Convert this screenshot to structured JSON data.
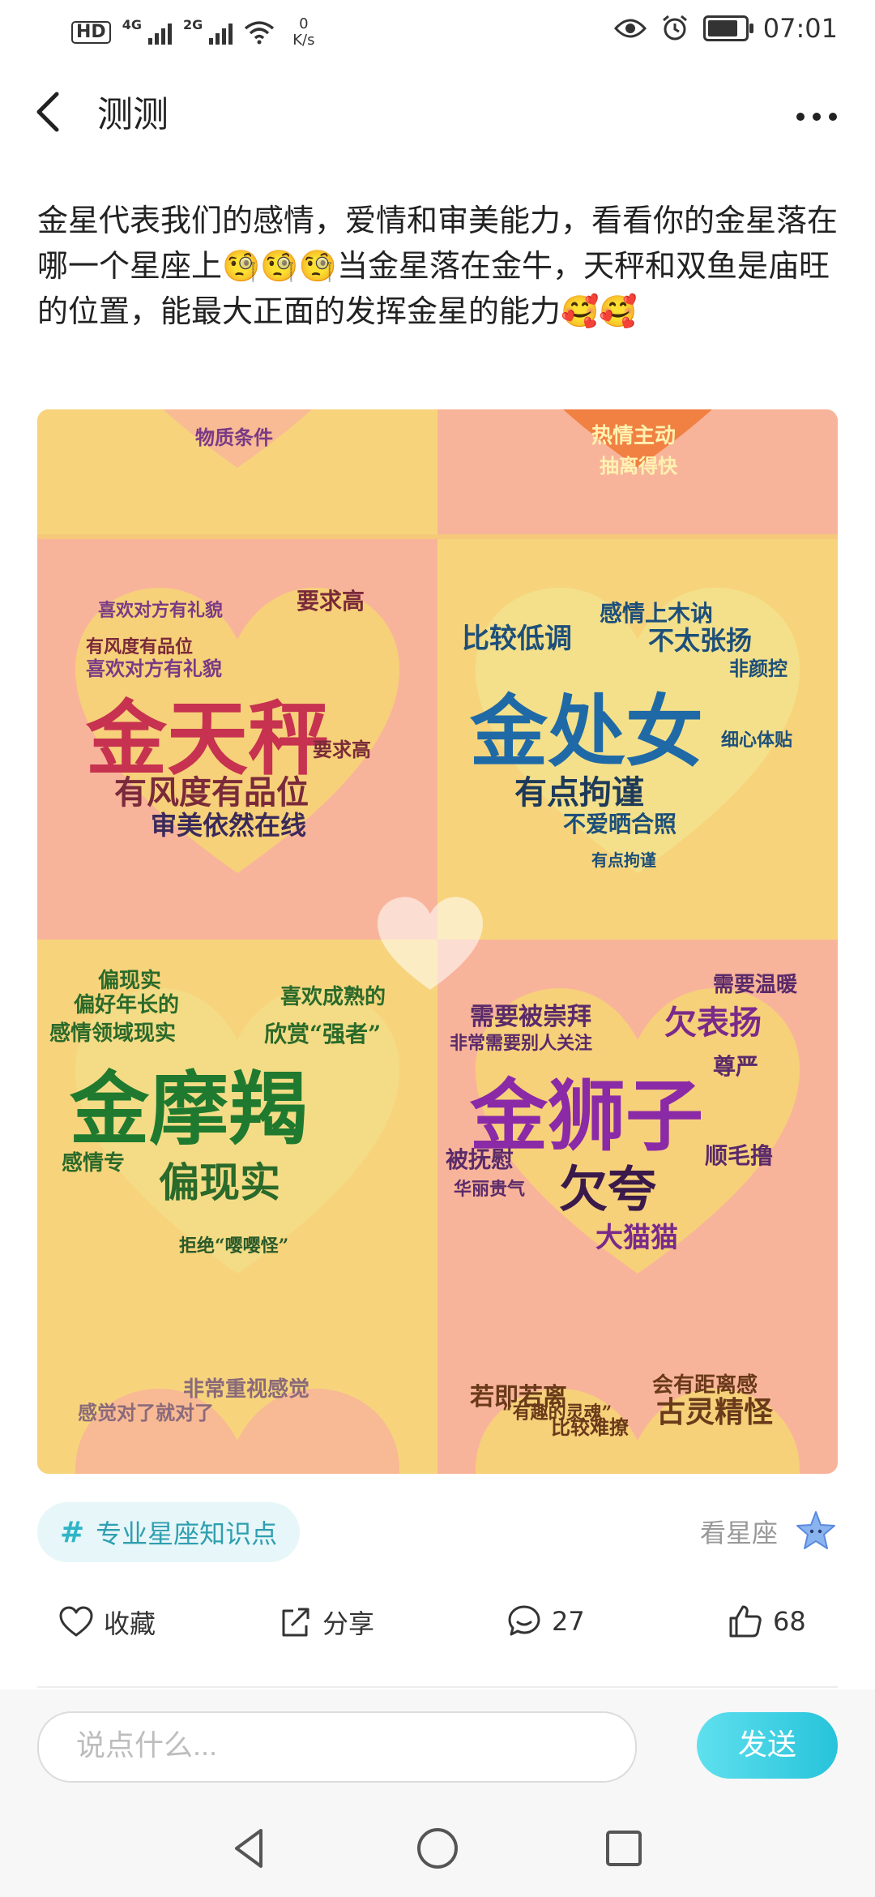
{
  "status_bar": {
    "hd": "HD",
    "sim1": "4G",
    "sim2": "2G",
    "speed_value": "0",
    "speed_unit": "K/s",
    "time": "07:01"
  },
  "header": {
    "title": "测测",
    "back_icon": "chevron-left-icon",
    "more_icon": "more-horizontal-icon"
  },
  "post": {
    "text": "金星代表我们的感情，爱情和审美能力，看看你的金星落在哪一个星座上🧐🧐🧐当金星落在金牛，天秤和双鱼是庙旺的位置，能最大正面的发挥金星的能力🥰🥰",
    "image_tiles": [
      {
        "big": [
          "金天秤"
        ],
        "phrases": [
          "有风度有品位",
          "审美依然在线",
          "喜欢对方有礼貌",
          "要求高",
          "要求高",
          "有风度有品位",
          "喜欢对方有礼貌"
        ]
      },
      {
        "big": [
          "金处女"
        ],
        "phrases": [
          "有点拘谨",
          "不爱晒合照",
          "比较低调",
          "不太张扬",
          "感情上木讷",
          "非颜控",
          "细心体贴",
          "有点拘谨"
        ]
      },
      {
        "big": [
          "金摩羯"
        ],
        "phrases": [
          "偏现实",
          "感情领域现实",
          "喜欢成熟的",
          "欣赏“强者”",
          "偏好年长的",
          "偏现实",
          "感情专",
          "拒绝“嘤嘤怪”"
        ]
      },
      {
        "big": [
          "金狮子"
        ],
        "phrases": [
          "欠夸",
          "大猫猫",
          "需要被崇拜",
          "欠表扬",
          "需要温暖",
          "被抚慰",
          "顺毛撸",
          "尊严",
          "华丽贵气",
          "非常需要别人关注"
        ]
      }
    ],
    "top_partial": [
      "物质条件",
      "热情主动",
      "抽离得快"
    ],
    "bottom_partial": [
      "非常重视感觉",
      "感觉对了就对了",
      "若即若离",
      "古灵精怪",
      "比较难撩",
      "会有距离感",
      "“有趣的灵魂”"
    ]
  },
  "tag": {
    "hash": "#",
    "label": "专业星座知识点"
  },
  "source": {
    "label": "看星座",
    "icon": "star-mascot-icon"
  },
  "actions": {
    "favorite": {
      "label": "收藏",
      "icon": "heart-icon"
    },
    "share": {
      "label": "分享",
      "icon": "share-icon"
    },
    "comment": {
      "count": "27",
      "icon": "comment-icon"
    },
    "like": {
      "count": "68",
      "icon": "thumbs-up-icon"
    }
  },
  "comment_bar": {
    "placeholder": "说点什么...",
    "send_label": "发送"
  },
  "nav": {
    "back_icon": "nav-back-icon",
    "home_icon": "nav-home-icon",
    "recents_icon": "nav-recents-icon"
  },
  "colors": {
    "accent": "#27c3da",
    "tag_bg": "#e7f6f9",
    "tile_pink": "#f8b49a",
    "tile_yellow": "#f7d47c"
  }
}
